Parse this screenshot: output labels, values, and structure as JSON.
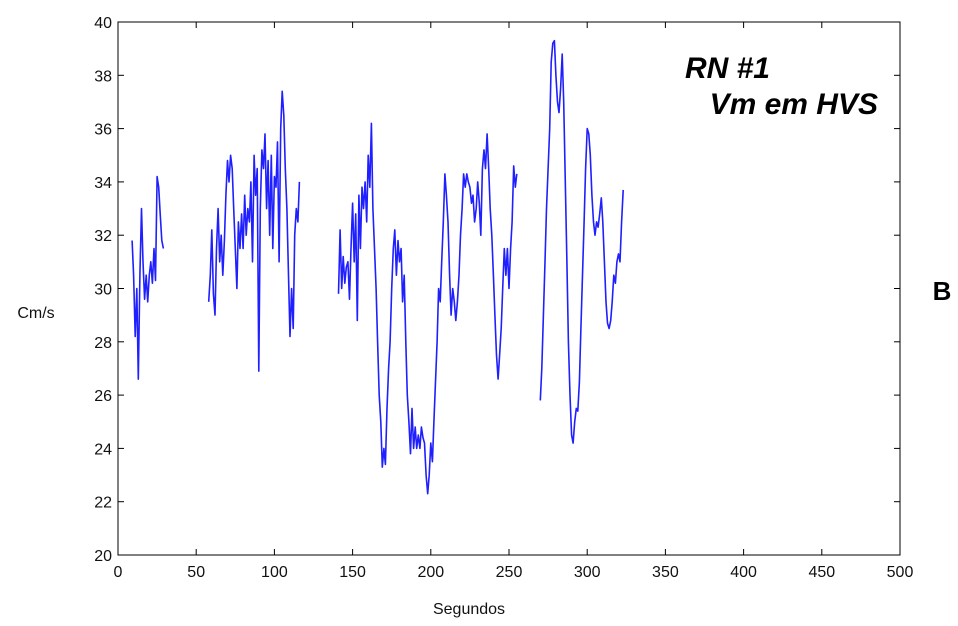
{
  "chart_data": {
    "type": "line",
    "xlabel": "Segundos",
    "ylabel": "Cm/s",
    "xlim": [
      0,
      500
    ],
    "ylim": [
      20,
      40
    ],
    "xticks": [
      0,
      50,
      100,
      150,
      200,
      250,
      300,
      350,
      400,
      450,
      500
    ],
    "yticks": [
      20,
      22,
      24,
      26,
      28,
      30,
      32,
      34,
      36,
      38,
      40
    ],
    "grid": false,
    "legend": "none",
    "annotation_lines": [
      "RN #1",
      "Vm em HVS"
    ],
    "panel_label": "B",
    "line_color": "#1f1fff",
    "series": [
      {
        "segments": [
          [
            [
              9,
              31.8
            ],
            [
              10,
              30.5
            ],
            [
              11,
              28.2
            ],
            [
              12,
              30
            ],
            [
              13,
              26.6
            ],
            [
              14,
              30.5
            ],
            [
              15,
              33
            ],
            [
              16,
              31
            ],
            [
              17,
              29.6
            ],
            [
              18,
              30.5
            ],
            [
              19,
              29.5
            ],
            [
              20,
              30.5
            ],
            [
              21,
              31
            ],
            [
              22,
              30.2
            ],
            [
              23,
              31.5
            ],
            [
              24,
              30.3
            ],
            [
              25,
              34.2
            ],
            [
              26,
              33.8
            ],
            [
              27,
              32.8
            ],
            [
              28,
              31.8
            ],
            [
              29,
              31.5
            ]
          ],
          [
            [
              58,
              29.5
            ],
            [
              59,
              30.5
            ],
            [
              60,
              32.2
            ],
            [
              61,
              29.8
            ],
            [
              62,
              29
            ],
            [
              63,
              31.5
            ],
            [
              64,
              33
            ],
            [
              65,
              31
            ],
            [
              66,
              32
            ],
            [
              67,
              30.5
            ],
            [
              68,
              31.8
            ],
            [
              69,
              33.5
            ],
            [
              70,
              34.8
            ],
            [
              71,
              34
            ],
            [
              72,
              35
            ],
            [
              73,
              34.5
            ],
            [
              74,
              33
            ],
            [
              75,
              31.5
            ],
            [
              76,
              30
            ],
            [
              77,
              32.5
            ],
            [
              78,
              31.5
            ],
            [
              79,
              32.8
            ],
            [
              80,
              31.5
            ],
            [
              81,
              33.5
            ],
            [
              82,
              32
            ],
            [
              83,
              33
            ],
            [
              84,
              32.5
            ],
            [
              85,
              34
            ],
            [
              86,
              31
            ],
            [
              87,
              35
            ],
            [
              88,
              33.5
            ],
            [
              89,
              34.5
            ],
            [
              90,
              26.9
            ],
            [
              91,
              33
            ],
            [
              92,
              35.2
            ],
            [
              93,
              34.5
            ],
            [
              94,
              35.8
            ],
            [
              95,
              33
            ],
            [
              96,
              34.8
            ],
            [
              97,
              32
            ],
            [
              98,
              35
            ],
            [
              99,
              31.5
            ],
            [
              100,
              34.2
            ],
            [
              101,
              33.8
            ],
            [
              102,
              35.5
            ],
            [
              103,
              31
            ],
            [
              104,
              36
            ],
            [
              105,
              37.4
            ],
            [
              106,
              36.5
            ],
            [
              107,
              34.5
            ],
            [
              108,
              33
            ],
            [
              109,
              30.5
            ],
            [
              110,
              28.2
            ],
            [
              111,
              30
            ],
            [
              112,
              28.5
            ],
            [
              113,
              32
            ],
            [
              114,
              33
            ],
            [
              115,
              32.5
            ],
            [
              116,
              34
            ]
          ],
          [
            [
              141,
              29.8
            ],
            [
              142,
              32.2
            ],
            [
              143,
              30
            ],
            [
              144,
              31.2
            ],
            [
              145,
              30.2
            ],
            [
              146,
              30.8
            ],
            [
              147,
              31
            ],
            [
              148,
              29.6
            ],
            [
              149,
              31.5
            ],
            [
              150,
              33.2
            ],
            [
              151,
              31
            ],
            [
              152,
              32.8
            ],
            [
              153,
              28.8
            ],
            [
              154,
              33.5
            ],
            [
              155,
              31.5
            ],
            [
              156,
              33.8
            ],
            [
              157,
              33
            ],
            [
              158,
              34
            ],
            [
              159,
              32.5
            ],
            [
              160,
              35
            ],
            [
              161,
              33.8
            ],
            [
              162,
              36.2
            ],
            [
              163,
              33
            ],
            [
              164,
              31.5
            ],
            [
              165,
              30
            ],
            [
              166,
              28
            ],
            [
              167,
              26
            ],
            [
              168,
              25
            ],
            [
              169,
              23.3
            ],
            [
              170,
              24
            ],
            [
              171,
              23.4
            ],
            [
              172,
              25.5
            ],
            [
              173,
              27
            ],
            [
              174,
              28
            ],
            [
              175,
              30
            ],
            [
              176,
              31.5
            ],
            [
              177,
              32.2
            ],
            [
              178,
              30.5
            ],
            [
              179,
              31.8
            ],
            [
              180,
              31
            ],
            [
              181,
              31.5
            ],
            [
              182,
              29.5
            ],
            [
              183,
              30.5
            ],
            [
              184,
              28
            ],
            [
              185,
              26
            ],
            [
              186,
              25
            ],
            [
              187,
              23.8
            ],
            [
              188,
              25.5
            ],
            [
              189,
              24
            ],
            [
              190,
              24.8
            ],
            [
              191,
              24
            ],
            [
              192,
              24.5
            ],
            [
              193,
              24
            ],
            [
              194,
              24.8
            ],
            [
              195,
              24.4
            ],
            [
              196,
              24.2
            ],
            [
              197,
              23
            ],
            [
              198,
              22.3
            ],
            [
              199,
              23
            ],
            [
              200,
              24.2
            ],
            [
              201,
              23.5
            ],
            [
              202,
              25
            ],
            [
              203,
              26.5
            ],
            [
              204,
              28
            ],
            [
              205,
              30
            ],
            [
              206,
              29.5
            ],
            [
              207,
              31
            ],
            [
              208,
              32.5
            ],
            [
              209,
              34.3
            ],
            [
              210,
              33.5
            ],
            [
              211,
              32.5
            ],
            [
              212,
              30.5
            ],
            [
              213,
              29
            ],
            [
              214,
              30
            ],
            [
              215,
              29.5
            ],
            [
              216,
              28.8
            ],
            [
              217,
              29.5
            ],
            [
              218,
              30.5
            ],
            [
              219,
              32
            ],
            [
              220,
              33
            ],
            [
              221,
              34.3
            ],
            [
              222,
              33.8
            ],
            [
              223,
              34.3
            ],
            [
              224,
              34
            ],
            [
              225,
              33.8
            ],
            [
              226,
              33.2
            ],
            [
              227,
              33.5
            ],
            [
              228,
              32.5
            ],
            [
              229,
              33
            ],
            [
              230,
              34
            ],
            [
              231,
              33.2
            ],
            [
              232,
              32
            ],
            [
              233,
              34.5
            ],
            [
              234,
              35.2
            ],
            [
              235,
              34.5
            ],
            [
              236,
              35.8
            ],
            [
              237,
              34.5
            ],
            [
              238,
              33
            ],
            [
              239,
              32
            ],
            [
              240,
              30.5
            ],
            [
              241,
              29
            ],
            [
              242,
              27.5
            ],
            [
              243,
              26.6
            ],
            [
              244,
              27.5
            ],
            [
              245,
              28.5
            ],
            [
              246,
              30
            ],
            [
              247,
              31.5
            ],
            [
              248,
              30.5
            ],
            [
              249,
              31.5
            ],
            [
              250,
              30
            ],
            [
              251,
              31.5
            ],
            [
              252,
              32.5
            ],
            [
              253,
              34.6
            ],
            [
              254,
              33.8
            ],
            [
              255,
              34.3
            ]
          ],
          [
            [
              270,
              25.8
            ],
            [
              271,
              27
            ],
            [
              272,
              29
            ],
            [
              273,
              31
            ],
            [
              274,
              33
            ],
            [
              275,
              34.5
            ],
            [
              276,
              36
            ],
            [
              277,
              38.5
            ],
            [
              278,
              39.2
            ],
            [
              279,
              39.3
            ],
            [
              280,
              38
            ],
            [
              281,
              37
            ],
            [
              282,
              36.6
            ],
            [
              283,
              37.5
            ],
            [
              284,
              38.8
            ],
            [
              285,
              37
            ],
            [
              286,
              34
            ],
            [
              287,
              31
            ],
            [
              288,
              28
            ],
            [
              289,
              26
            ],
            [
              290,
              24.5
            ],
            [
              291,
              24.2
            ],
            [
              292,
              25
            ],
            [
              293,
              25.5
            ],
            [
              294,
              25.4
            ],
            [
              295,
              26.5
            ],
            [
              296,
              28.5
            ],
            [
              297,
              30.5
            ],
            [
              298,
              32.5
            ],
            [
              299,
              34.5
            ],
            [
              300,
              36
            ],
            [
              301,
              35.8
            ],
            [
              302,
              35
            ],
            [
              303,
              33.5
            ],
            [
              304,
              32.5
            ],
            [
              305,
              32
            ],
            [
              306,
              32.5
            ],
            [
              307,
              32.3
            ],
            [
              308,
              32.8
            ],
            [
              309,
              33.4
            ],
            [
              310,
              32.5
            ],
            [
              311,
              31
            ],
            [
              312,
              29.5
            ],
            [
              313,
              28.7
            ],
            [
              314,
              28.5
            ],
            [
              315,
              28.8
            ],
            [
              316,
              29.5
            ],
            [
              317,
              30.5
            ],
            [
              318,
              30.2
            ],
            [
              319,
              31
            ],
            [
              320,
              31.3
            ],
            [
              321,
              31
            ],
            [
              322,
              32.5
            ],
            [
              323,
              33.7
            ]
          ]
        ]
      }
    ]
  }
}
